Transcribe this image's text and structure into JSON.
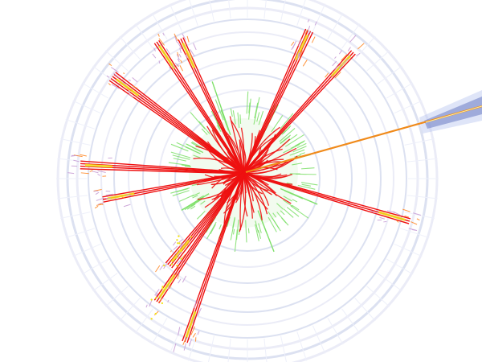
{
  "image": {
    "subject": "particle-collision-event-display",
    "background": "#ffffff",
    "colors": {
      "detector_rings": "#d8def0",
      "detector_ring_alt": "#e9eaf6",
      "main_tracks": "#ee1010",
      "secondary_tracks": "#7ee06a",
      "energy_deposits": "#f2e21c",
      "hit_marks": "#ff8a2a",
      "escaping_track": "#f08a1a",
      "escaping_track_halo": "#2a3fa0",
      "fringe_hits": "#c9a0d6"
    },
    "jet_count": 11,
    "escaping_track_count": 1
  }
}
